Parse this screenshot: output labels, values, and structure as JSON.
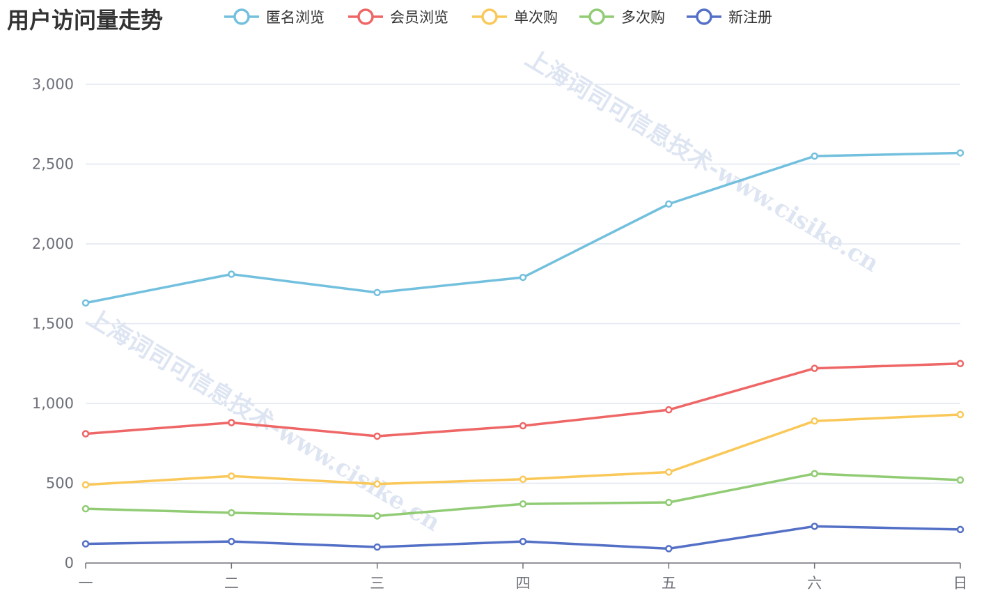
{
  "chart_data": {
    "type": "line",
    "title": "用户访问量走势",
    "categories": [
      "一",
      "二",
      "三",
      "四",
      "五",
      "六",
      "日"
    ],
    "ylim": [
      0,
      3000
    ],
    "yticks": [
      0,
      500,
      1000,
      1500,
      2000,
      2500,
      3000
    ],
    "ytick_labels": [
      "0",
      "500",
      "1,000",
      "1,500",
      "2,000",
      "2,500",
      "3,000"
    ],
    "grid": true,
    "legend_position": "top",
    "series": [
      {
        "name": "匿名浏览",
        "color": "#73c0de",
        "values": [
          1630,
          1810,
          1695,
          1790,
          2250,
          2550,
          2570
        ]
      },
      {
        "name": "会员浏览",
        "color": "#ee6666",
        "values": [
          810,
          880,
          795,
          860,
          960,
          1220,
          1250
        ]
      },
      {
        "name": "单次购",
        "color": "#fac858",
        "values": [
          490,
          545,
          495,
          525,
          570,
          890,
          930
        ]
      },
      {
        "name": "多次购",
        "color": "#91cc75",
        "values": [
          340,
          315,
          295,
          370,
          380,
          560,
          520
        ]
      },
      {
        "name": "新注册",
        "color": "#5470c6",
        "values": [
          120,
          135,
          100,
          135,
          90,
          230,
          210
        ]
      }
    ]
  },
  "watermark": {
    "text": "上海词司可信息技术-www.cisike.cn",
    "color": "#d3dcee"
  }
}
